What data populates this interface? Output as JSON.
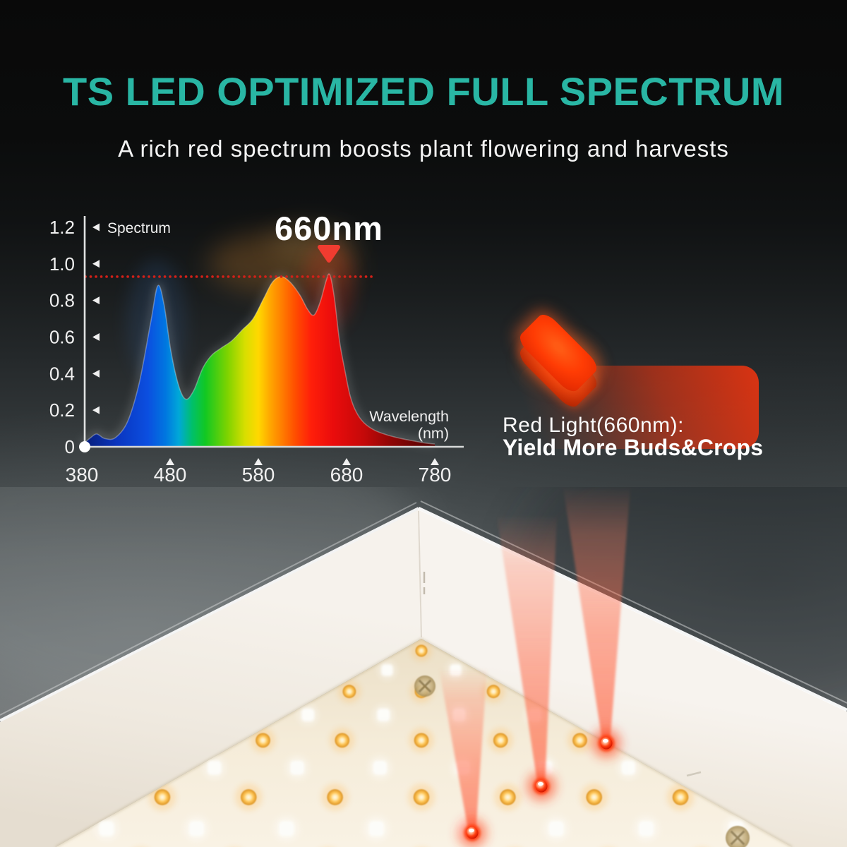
{
  "colors": {
    "teal_accent": "#29b6a4",
    "red_accent": "#e2330f",
    "dotted_line_red": "#d22018",
    "chart_text": "#f0f0f0",
    "marker_red": "#f03c30"
  },
  "header": {
    "title": "TS LED OPTIMIZED FULL SPECTRUM",
    "subtitle": "A rich red spectrum boosts plant flowering and harvests"
  },
  "chart_data": {
    "type": "area",
    "title": "",
    "y_axis_label": "Spectrum",
    "x_axis_label_line1": "Wavelength",
    "x_axis_label_line2": "(nm)",
    "annotation": "660nm",
    "marker_wavelength": 660,
    "reference_line_y": 0.93,
    "x_range": [
      380,
      780
    ],
    "y_range": [
      0,
      1.2
    ],
    "grid": false,
    "legend": "none",
    "x_ticks": [
      {
        "v": 380,
        "label": "380"
      },
      {
        "v": 480,
        "label": "480"
      },
      {
        "v": 580,
        "label": "580"
      },
      {
        "v": 680,
        "label": "680"
      },
      {
        "v": 780,
        "label": "780"
      }
    ],
    "y_ticks": [
      {
        "v": 0.0,
        "label": "0"
      },
      {
        "v": 0.2,
        "label": "0.2"
      },
      {
        "v": 0.4,
        "label": "0.4"
      },
      {
        "v": 0.6,
        "label": "0.6"
      },
      {
        "v": 0.8,
        "label": "0.8"
      },
      {
        "v": 1.0,
        "label": "1.0"
      },
      {
        "v": 1.2,
        "label": "1.2"
      }
    ],
    "series": [
      {
        "name": "Spectrum",
        "points": [
          [
            380,
            0.01
          ],
          [
            390,
            0.05
          ],
          [
            397,
            0.07
          ],
          [
            406,
            0.045
          ],
          [
            418,
            0.05
          ],
          [
            432,
            0.14
          ],
          [
            445,
            0.35
          ],
          [
            458,
            0.68
          ],
          [
            466,
            0.88
          ],
          [
            473,
            0.78
          ],
          [
            481,
            0.52
          ],
          [
            490,
            0.33
          ],
          [
            498,
            0.26
          ],
          [
            507,
            0.31
          ],
          [
            517,
            0.43
          ],
          [
            527,
            0.5
          ],
          [
            538,
            0.54
          ],
          [
            550,
            0.58
          ],
          [
            562,
            0.64
          ],
          [
            574,
            0.7
          ],
          [
            586,
            0.81
          ],
          [
            596,
            0.9
          ],
          [
            606,
            0.93
          ],
          [
            616,
            0.9
          ],
          [
            627,
            0.83
          ],
          [
            636,
            0.75
          ],
          [
            643,
            0.72
          ],
          [
            650,
            0.79
          ],
          [
            657,
            0.91
          ],
          [
            661,
            0.94
          ],
          [
            666,
            0.82
          ],
          [
            672,
            0.58
          ],
          [
            678,
            0.42
          ],
          [
            684,
            0.28
          ],
          [
            691,
            0.19
          ],
          [
            700,
            0.13
          ],
          [
            712,
            0.09
          ],
          [
            726,
            0.065
          ],
          [
            742,
            0.045
          ],
          [
            758,
            0.03
          ],
          [
            770,
            0.02
          ],
          [
            780,
            0.015
          ]
        ]
      }
    ]
  },
  "red_light": {
    "line1": "Red Light(660nm):",
    "line2": "Yield More Buds&Crops"
  },
  "icons": {
    "peak_marker": "triangle-down-icon",
    "led_chip": "red-led-chip-icon",
    "screw": "screw-icon"
  },
  "led_panel": {
    "red_led_count": 3,
    "led_types": [
      "white",
      "warm-amber",
      "red-660nm"
    ]
  }
}
